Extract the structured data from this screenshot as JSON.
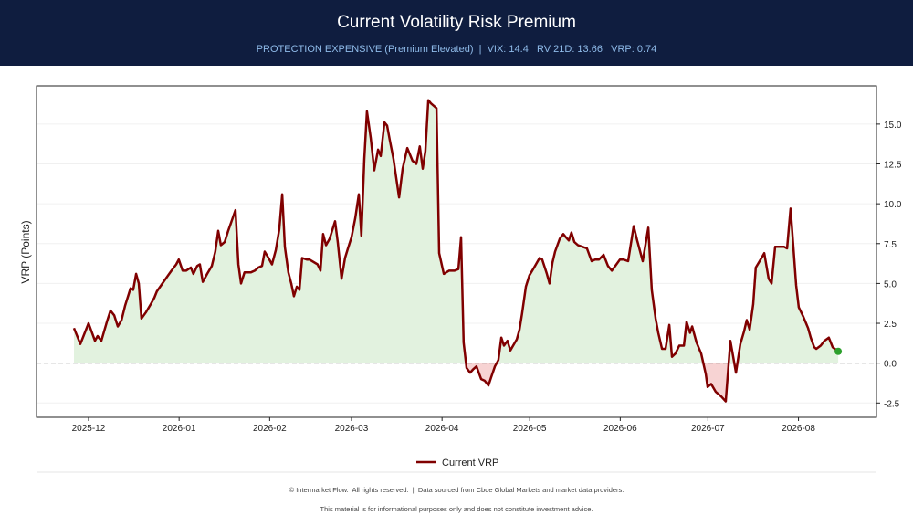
{
  "header": {
    "title": "Current Volatility Risk Premium",
    "subtitle": "PROTECTION EXPENSIVE (Premium Elevated)  |  VIX: 14.4   RV 21D: 13.66   VRP: 0.74"
  },
  "chart_data": {
    "type": "line",
    "y_label": "VRP (Points)",
    "x": [
      -5,
      -2.8,
      0,
      2.2,
      3.1,
      4.4,
      6.3,
      7.5,
      8.8,
      10,
      11.3,
      12.5,
      14.4,
      15.3,
      16.3,
      17.2,
      18.1,
      19.7,
      21.3,
      22.5,
      23.4,
      25.3,
      27.2,
      28.4,
      30,
      30.9,
      32.2,
      33.4,
      35,
      35.9,
      37.2,
      38.1,
      39.1,
      40.6,
      42.2,
      43.4,
      44.4,
      45.3,
      46.6,
      47.8,
      50.3,
      51.3,
      52.2,
      53.4,
      55.6,
      56.9,
      58.1,
      59.4,
      60.3,
      61.6,
      62.8,
      64.1,
      65.3,
      66.3,
      67.2,
      68.4,
      69.4,
      70.3,
      71.3,
      72.2,
      73.1,
      74.7,
      75.6,
      78.4,
      79.4,
      80.3,
      81.3,
      82.5,
      84.4,
      85.3,
      86.6,
      87.8,
      88.8,
      90,
      91.3,
      92.5,
      93.4,
      94.4,
      95.3,
      96.6,
      97.8,
      99.1,
      100,
      101.3,
      102.2,
      103.1,
      104.4,
      106.3,
      107.5,
      109.1,
      110.9,
      112.2,
      113.4,
      114.4,
      115.3,
      116.3,
      117.2,
      119.1,
      120,
      121.6,
      123.4,
      125.3,
      126.6,
      127.5,
      128.4,
      129.4,
      130.6,
      131.6,
      132.8,
      134.4,
      135.6,
      136.9,
      137.8,
      139.1,
      140.3,
      141.3,
      142.2,
      143.4,
      144.4,
      146.6,
      147.5,
      148.4,
      149.7,
      150.9,
      152.5,
      154.4,
      155.3,
      156.9,
      157.8,
      158.8,
      159.7,
      161.3,
      162.5,
      163.4,
      164.4,
      165.3,
      166.3,
      167.5,
      169.1,
      170.6,
      172.2,
      173.4,
      174.7,
      176.3,
      177.8,
      179.1,
      180.3,
      181.9,
      183.1,
      184.7,
      186.6,
      187.8,
      189.7,
      191.6,
      192.8,
      194.1,
      195,
      196.3,
      197.5,
      198.8,
      199.7,
      200.9,
      202.2,
      203.8,
      204.7,
      205.9,
      206.6,
      208.1,
      209.7,
      211.3,
      211.9,
      213.1,
      214.7,
      216.6,
      218.1,
      219.7,
      221.6,
      223.1,
      224.4,
      225.3,
      226.3,
      227.5,
      228.4,
      229.7,
      231.3,
      232.8,
      233.8,
      235,
      236.3,
      238.1,
      239.1,
      240.3,
      241.3,
      242.2,
      243.1,
      244.7,
      246.3,
      247.2,
      248.4,
      249.1,
      250.6,
      251.9,
      253.4,
      254.7,
      256.6
    ],
    "series": [
      {
        "name": "Current VRP",
        "color": "#800000",
        "values": [
          2.2,
          1.2,
          2.5,
          1.4,
          1.7,
          1.4,
          2.6,
          3.3,
          3.0,
          2.3,
          2.7,
          3.6,
          4.7,
          4.6,
          5.6,
          5.0,
          2.8,
          3.2,
          3.7,
          4.1,
          4.5,
          5.0,
          5.5,
          5.8,
          6.2,
          6.5,
          5.8,
          5.8,
          6.0,
          5.6,
          6.1,
          6.2,
          5.1,
          5.6,
          6.1,
          7.0,
          8.3,
          7.4,
          7.6,
          8.3,
          9.6,
          6.2,
          5.0,
          5.7,
          5.7,
          5.8,
          6.0,
          6.1,
          7.0,
          6.6,
          6.2,
          7.1,
          8.4,
          10.6,
          7.3,
          5.7,
          5.0,
          4.2,
          4.8,
          4.6,
          6.6,
          6.5,
          6.5,
          6.2,
          5.8,
          8.1,
          7.4,
          7.8,
          8.9,
          7.6,
          5.3,
          6.6,
          7.2,
          7.9,
          9.1,
          10.6,
          8.0,
          12.8,
          15.8,
          14.1,
          12.1,
          13.4,
          13.0,
          15.1,
          14.9,
          14.0,
          12.8,
          10.4,
          12.2,
          13.5,
          12.7,
          12.5,
          13.6,
          12.2,
          13.3,
          16.5,
          16.3,
          16.0,
          6.9,
          5.6,
          5.8,
          5.8,
          5.9,
          7.9,
          1.3,
          -0.3,
          -0.6,
          -0.4,
          -0.2,
          -1.0,
          -1.1,
          -1.4,
          -0.9,
          -0.2,
          0.2,
          1.6,
          1.1,
          1.4,
          0.8,
          1.5,
          2.1,
          3.1,
          4.8,
          5.5,
          6.0,
          6.6,
          6.5,
          5.6,
          5.0,
          6.3,
          7.0,
          7.8,
          8.1,
          7.9,
          7.7,
          8.2,
          7.6,
          7.4,
          7.3,
          7.2,
          6.4,
          6.5,
          6.5,
          6.8,
          6.1,
          5.8,
          6.1,
          6.5,
          6.5,
          6.4,
          8.6,
          7.7,
          6.4,
          8.5,
          4.6,
          2.8,
          1.9,
          0.9,
          0.9,
          2.4,
          0.4,
          0.6,
          1.1,
          1.1,
          2.6,
          1.9,
          2.3,
          1.3,
          0.6,
          -0.7,
          -1.5,
          -1.3,
          -1.8,
          -2.1,
          -2.4,
          1.4,
          -0.6,
          1.2,
          2.0,
          2.7,
          2.1,
          3.7,
          6.0,
          6.4,
          6.9,
          5.3,
          5.0,
          7.3,
          7.3,
          7.3,
          7.2,
          9.7,
          7.2,
          4.9,
          3.5,
          2.9,
          2.2,
          1.6,
          1.0,
          0.9,
          1.1,
          1.4,
          1.6,
          1.0,
          0.74
        ]
      }
    ],
    "positive_fill": "#e2f2df",
    "negative_fill": "#f7d3d3",
    "end_marker_color": "#2ca02c",
    "zero_line_color": "#444444",
    "xlim": [
      -17.8,
      269.7
    ],
    "xticks": [
      {
        "value": 0,
        "label": "2025-12"
      },
      {
        "value": 31,
        "label": "2026-01"
      },
      {
        "value": 62,
        "label": "2026-02"
      },
      {
        "value": 90,
        "label": "2026-03"
      },
      {
        "value": 121,
        "label": "2026-04"
      },
      {
        "value": 151,
        "label": "2026-05"
      },
      {
        "value": 182,
        "label": "2026-06"
      },
      {
        "value": 212,
        "label": "2026-07"
      },
      {
        "value": 243,
        "label": "2026-08"
      }
    ],
    "ylim": [
      -3.4,
      17.4
    ],
    "yticks": [
      -2.5,
      {
        "value": 0,
        "label": "0.0"
      },
      2.5,
      {
        "value": 5,
        "label": "5.0"
      },
      7.5,
      {
        "value": 10,
        "label": "10.0"
      },
      12.5,
      {
        "value": 15,
        "label": "15.0"
      }
    ],
    "grid": true,
    "legend": "bottom"
  },
  "footer": {
    "line1": "© Intermarket Flow.  All rights reserved.  |  Data sourced from Cboe Global Markets and market data providers.",
    "line2": "This material is for informational purposes only and does not constitute investment advice."
  }
}
